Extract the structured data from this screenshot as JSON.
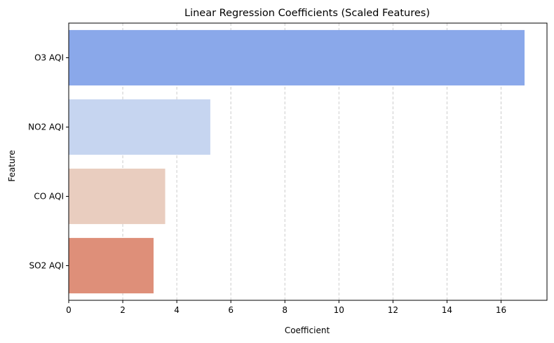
{
  "chart_data": {
    "type": "bar",
    "orientation": "horizontal",
    "title": "Linear Regression Coefficients (Scaled Features)",
    "xlabel": "Coefficient",
    "ylabel": "Feature",
    "categories": [
      "O3 AQI",
      "NO2 AQI",
      "CO AQI",
      "SO2 AQI"
    ],
    "values": [
      16.87,
      5.24,
      3.57,
      3.14
    ],
    "colors": [
      "#8aa8ea",
      "#c6d5f0",
      "#e9cdbf",
      "#de8f79"
    ],
    "xlim": [
      0,
      17.7
    ],
    "xticks": [
      0,
      2,
      4,
      6,
      8,
      10,
      12,
      14,
      16
    ],
    "xtick_labels": [
      "0",
      "2",
      "4",
      "6",
      "8",
      "10",
      "12",
      "14",
      "16"
    ],
    "grid": "x-dashed",
    "legend": "none"
  }
}
